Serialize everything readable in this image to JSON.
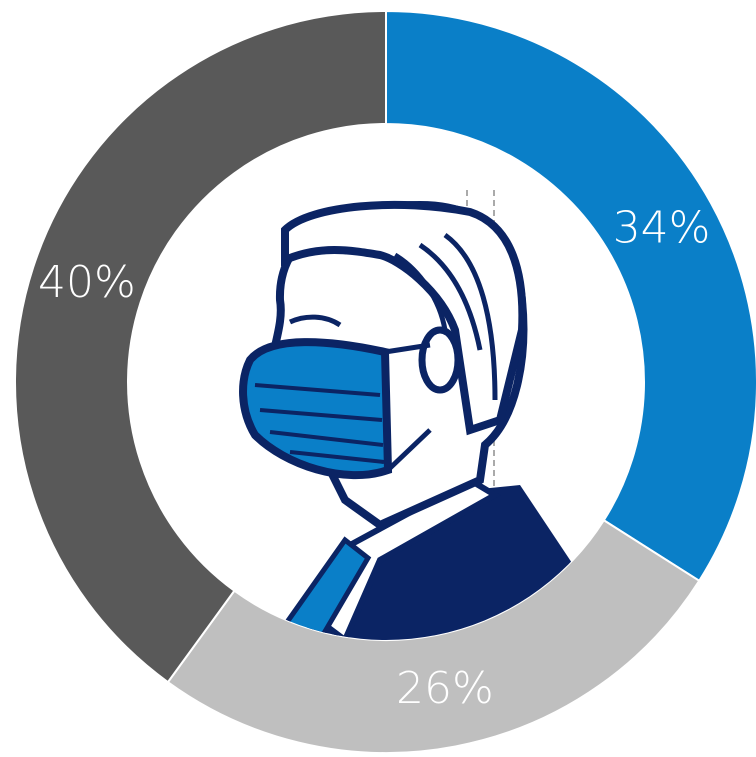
{
  "chart_data": {
    "type": "pie",
    "donut": true,
    "values": [
      34,
      26,
      40
    ],
    "value_labels": [
      "34%",
      "26%",
      "40%"
    ],
    "colors": [
      "#0a7fc8",
      "#bfbfbf",
      "#595959"
    ]
  }
}
